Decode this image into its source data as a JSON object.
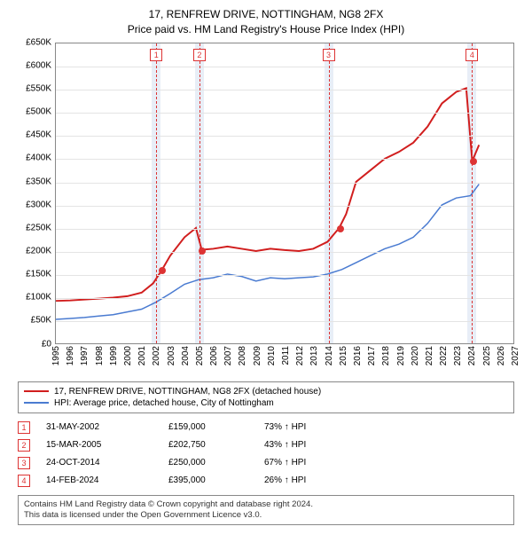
{
  "title_line1": "17, RENFREW DRIVE, NOTTINGHAM, NG8 2FX",
  "title_line2": "Price paid vs. HM Land Registry's House Price Index (HPI)",
  "chart": {
    "type": "line",
    "background_color": "#ffffff",
    "grid_color": "#e4e4e4",
    "border_color": "#888888",
    "band_color": "#e8eef7",
    "font_size_labels": 10,
    "xlim": [
      1995,
      2027
    ],
    "ylim": [
      0,
      650000
    ],
    "ytick_step": 50000,
    "yticks": [
      "£0",
      "£50K",
      "£100K",
      "£150K",
      "£200K",
      "£250K",
      "£300K",
      "£350K",
      "£400K",
      "£450K",
      "£500K",
      "£550K",
      "£600K",
      "£650K"
    ],
    "xticks": [
      1995,
      1996,
      1997,
      1998,
      1999,
      2000,
      2001,
      2002,
      2003,
      2004,
      2005,
      2006,
      2007,
      2008,
      2009,
      2010,
      2011,
      2012,
      2013,
      2014,
      2015,
      2016,
      2017,
      2018,
      2019,
      2020,
      2021,
      2022,
      2023,
      2024,
      2025,
      2026,
      2027
    ],
    "band_years": [
      2002,
      2005,
      2014,
      2024
    ],
    "series": [
      {
        "name": "property",
        "color": "#d11e1e",
        "line_width": 2,
        "points": [
          [
            1995,
            92000
          ],
          [
            1996,
            93000
          ],
          [
            1997,
            95000
          ],
          [
            1998,
            97000
          ],
          [
            1999,
            99000
          ],
          [
            2000,
            102000
          ],
          [
            2001,
            110000
          ],
          [
            2001.8,
            130000
          ],
          [
            2002.42,
            159000
          ],
          [
            2003,
            190000
          ],
          [
            2004,
            230000
          ],
          [
            2004.8,
            250000
          ],
          [
            2005.2,
            202750
          ],
          [
            2006,
            205000
          ],
          [
            2007,
            210000
          ],
          [
            2008,
            205000
          ],
          [
            2009,
            200000
          ],
          [
            2010,
            205000
          ],
          [
            2011,
            202000
          ],
          [
            2012,
            200000
          ],
          [
            2013,
            205000
          ],
          [
            2014,
            220000
          ],
          [
            2014.82,
            250000
          ],
          [
            2015.3,
            280000
          ],
          [
            2016,
            350000
          ],
          [
            2017,
            375000
          ],
          [
            2018,
            400000
          ],
          [
            2019,
            415000
          ],
          [
            2020,
            435000
          ],
          [
            2021,
            470000
          ],
          [
            2022,
            520000
          ],
          [
            2023,
            545000
          ],
          [
            2023.7,
            553000
          ],
          [
            2024.12,
            395000
          ],
          [
            2024.6,
            430000
          ]
        ]
      },
      {
        "name": "hpi",
        "color": "#4a7bd1",
        "line_width": 1.5,
        "points": [
          [
            1995,
            52000
          ],
          [
            1996,
            54000
          ],
          [
            1997,
            56000
          ],
          [
            1998,
            59000
          ],
          [
            1999,
            62000
          ],
          [
            2000,
            68000
          ],
          [
            2001,
            74000
          ],
          [
            2002,
            89000
          ],
          [
            2003,
            108000
          ],
          [
            2004,
            128000
          ],
          [
            2005,
            138000
          ],
          [
            2006,
            142000
          ],
          [
            2007,
            150000
          ],
          [
            2008,
            145000
          ],
          [
            2009,
            135000
          ],
          [
            2010,
            142000
          ],
          [
            2011,
            140000
          ],
          [
            2012,
            142000
          ],
          [
            2013,
            144000
          ],
          [
            2014,
            150000
          ],
          [
            2015,
            160000
          ],
          [
            2016,
            175000
          ],
          [
            2017,
            190000
          ],
          [
            2018,
            205000
          ],
          [
            2019,
            215000
          ],
          [
            2020,
            230000
          ],
          [
            2021,
            260000
          ],
          [
            2022,
            300000
          ],
          [
            2023,
            315000
          ],
          [
            2024,
            320000
          ],
          [
            2024.6,
            345000
          ]
        ]
      }
    ],
    "sale_points": [
      {
        "n": "1",
        "x": 2002.42,
        "y": 159000
      },
      {
        "n": "2",
        "x": 2005.2,
        "y": 202750
      },
      {
        "n": "3",
        "x": 2014.82,
        "y": 250000
      },
      {
        "n": "4",
        "x": 2024.12,
        "y": 395000
      }
    ]
  },
  "legend": {
    "items": [
      {
        "color": "#d11e1e",
        "label": "17, RENFREW DRIVE, NOTTINGHAM, NG8 2FX (detached house)"
      },
      {
        "color": "#4a7bd1",
        "label": "HPI: Average price, detached house, City of Nottingham"
      }
    ]
  },
  "events": [
    {
      "n": "1",
      "date": "31-MAY-2002",
      "price": "£159,000",
      "pct": "73% ",
      "suffix": " HPI"
    },
    {
      "n": "2",
      "date": "15-MAR-2005",
      "price": "£202,750",
      "pct": "43% ",
      "suffix": " HPI"
    },
    {
      "n": "3",
      "date": "24-OCT-2014",
      "price": "£250,000",
      "pct": "67% ",
      "suffix": " HPI"
    },
    {
      "n": "4",
      "date": "14-FEB-2024",
      "price": "£395,000",
      "pct": "26% ",
      "suffix": " HPI"
    }
  ],
  "footer": {
    "line1": "Contains HM Land Registry data © Crown copyright and database right 2024.",
    "line2": "This data is licensed under the Open Government Licence v3.0."
  }
}
